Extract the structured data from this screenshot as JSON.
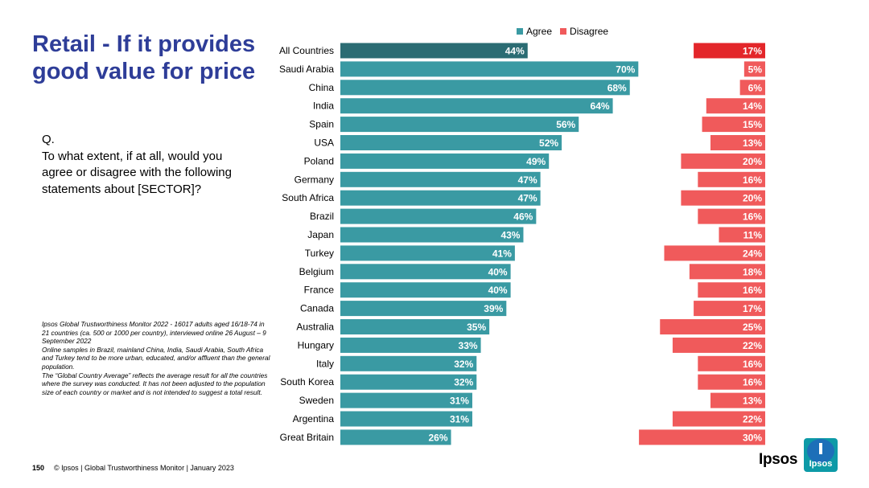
{
  "title": "Retail - If it provides good value for price",
  "question": {
    "prefix": "Q.",
    "text": "To what extent, if at all, would you agree or disagree with the following statements about [SECTOR]?"
  },
  "notes": [
    "Ipsos Global Trustworthiness Monitor 2022 - 16017 adults aged 16/18-74 in 21 countries (ca. 500 or 1000 per country), interviewed online 26 August – 9 September 2022",
    "Online samples in Brazil, mainland China, India, Saudi Arabia, South Africa and Turkey tend to be more urban, educated, and/or affluent than the general population.",
    "The “Global Country Average” reflects the average result for all the countries where the survey was conducted. It has not been adjusted to the population size of each country or market and is not intended to suggest a total result."
  ],
  "footer": {
    "page_number": "150",
    "text": "© Ipsos | Global Trustworthiness Monitor | January 2023"
  },
  "brand": {
    "wordmark": "Ipsos",
    "logo_text": "Ipsos"
  },
  "colors": {
    "agree": "#3a9aa3",
    "agree_highlight": "#2b6c73",
    "disagree": "#f05a5b",
    "disagree_highlight": "#e3262a",
    "title": "#2e3d98"
  },
  "chart_data": {
    "type": "bar",
    "orientation": "horizontal",
    "legend_position": "top",
    "categories": [
      "All Countries",
      "Saudi Arabia",
      "China",
      "India",
      "Spain",
      "USA",
      "Poland",
      "Germany",
      "South Africa",
      "Brazil",
      "Japan",
      "Turkey",
      "Belgium",
      "France",
      "Canada",
      "Australia",
      "Hungary",
      "Italy",
      "South Korea",
      "Sweden",
      "Argentina",
      "Great Britain"
    ],
    "series": [
      {
        "name": "Agree",
        "values": [
          44,
          70,
          68,
          64,
          56,
          52,
          49,
          47,
          47,
          46,
          43,
          41,
          40,
          40,
          39,
          35,
          33,
          32,
          32,
          31,
          31,
          26
        ],
        "labels": [
          "44%",
          "70%",
          "68%",
          "64%",
          "56%",
          "52%",
          "49%",
          "47%",
          "47%",
          "46%",
          "43%",
          "41%",
          "40%",
          "40%",
          "39%",
          "35%",
          "33%",
          "32%",
          "32%",
          "31%",
          "31%",
          "26%"
        ]
      },
      {
        "name": "Disagree",
        "values": [
          17,
          5,
          6,
          14,
          15,
          13,
          20,
          16,
          20,
          16,
          11,
          24,
          18,
          16,
          17,
          25,
          22,
          16,
          16,
          13,
          22,
          30
        ],
        "labels": [
          "17%",
          "5%",
          "6%",
          "14%",
          "15%",
          "13%",
          "20%",
          "16%",
          "20%",
          "16%",
          "11%",
          "24%",
          "18%",
          "16%",
          "17%",
          "25%",
          "22%",
          "16%",
          "16%",
          "13%",
          "22%",
          "30%"
        ]
      }
    ]
  }
}
